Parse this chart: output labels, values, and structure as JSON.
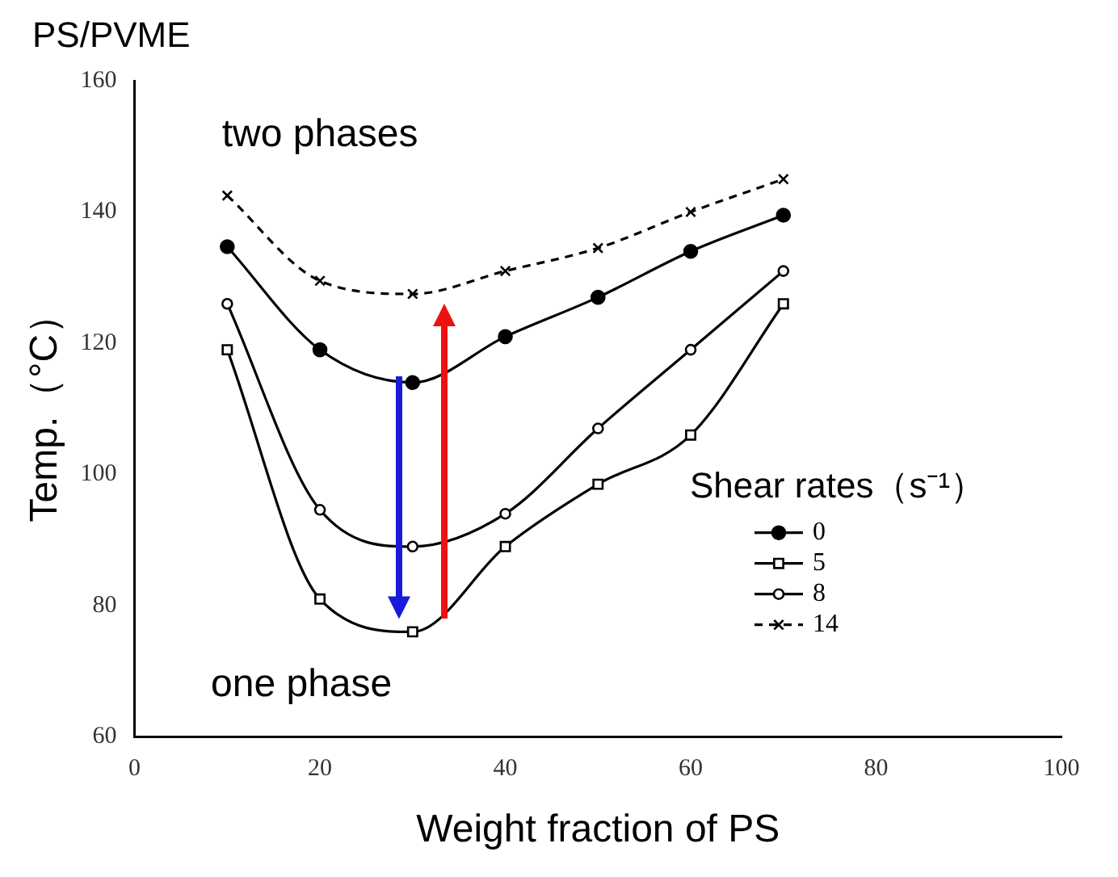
{
  "chart_data": {
    "type": "line",
    "title": "PS/PVME",
    "xlabel": "Weight fraction of PS",
    "ylabel": "Temp.（°C）",
    "legend_title": "Shear rates（s⁻¹）",
    "annotations": [
      "two phases",
      "one phase"
    ],
    "x": [
      10,
      20,
      30,
      40,
      50,
      60,
      70
    ],
    "xlim": [
      0,
      100
    ],
    "xticks": [
      0,
      20,
      40,
      60,
      80,
      100
    ],
    "ylim": [
      60,
      160
    ],
    "yticks": [
      60,
      80,
      100,
      120,
      140,
      160
    ],
    "grid": false,
    "legend": "right",
    "line_style": "solid",
    "series": [
      {
        "name": "0",
        "color": "#000000",
        "marker": "circle",
        "values": [
          134.7,
          119,
          114,
          121,
          127,
          134,
          139.5
        ]
      },
      {
        "name": "5",
        "color": "#000000",
        "marker": "square",
        "values": [
          119,
          81,
          76,
          89,
          98.5,
          106,
          126
        ]
      },
      {
        "name": "8",
        "color": "#000000",
        "marker": "circle",
        "values": [
          126,
          94.6,
          89,
          94,
          107,
          119,
          131
        ]
      },
      {
        "name": "14",
        "color": "#000000",
        "marker": "cross",
        "line_style": "dashed",
        "values": [
          142.5,
          129.5,
          127.5,
          131,
          134.5,
          140,
          145
        ]
      }
    ]
  }
}
